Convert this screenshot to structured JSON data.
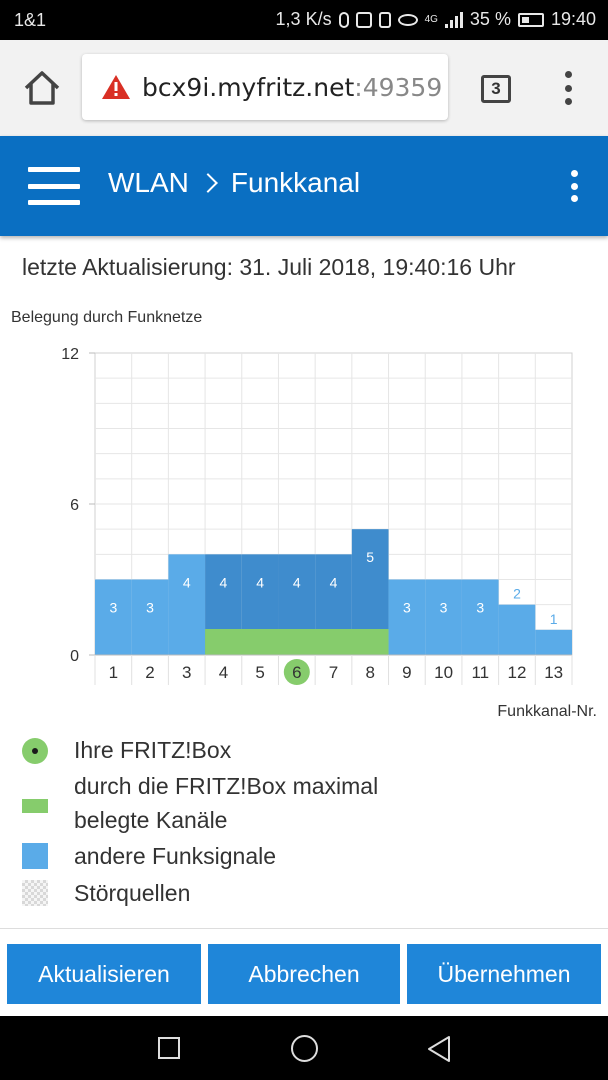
{
  "status_bar": {
    "carrier": "1&1",
    "speed": "1,3 K/s",
    "network": "4G",
    "battery": "35 %",
    "time": "19:40"
  },
  "browser": {
    "url_host": "bcx9i.myfritz.net",
    "url_port": ":49359",
    "tab_count": "3"
  },
  "header": {
    "section": "WLAN",
    "page": "Funkkanal"
  },
  "content": {
    "last_update": "letzte Aktualisierung: 31. Juli 2018, 19:40:16 Uhr"
  },
  "chart_data": {
    "type": "bar",
    "title": "Belegung durch Funknetze",
    "xlabel": "Funkkanal-Nr.",
    "ylabel": "",
    "ylim": [
      0,
      12
    ],
    "yticks": [
      0,
      6,
      12
    ],
    "categories": [
      "1",
      "2",
      "3",
      "4",
      "5",
      "6",
      "7",
      "8",
      "9",
      "10",
      "11",
      "12",
      "13"
    ],
    "values": [
      3,
      3,
      4,
      4,
      4,
      4,
      4,
      5,
      3,
      3,
      3,
      2,
      1
    ],
    "highlighted_channels": [
      "4",
      "5",
      "6",
      "7",
      "8"
    ],
    "own_channel": "6",
    "fritzbox_band": {
      "from": "4",
      "to": "8"
    },
    "colors": {
      "other_signals": "#5aabe8",
      "highlighted": "#3f8ccd",
      "fritzbox": "#86cc6c"
    }
  },
  "legend": [
    {
      "symbol": "dot",
      "label": "Ihre FRITZ!Box"
    },
    {
      "symbol": "bar",
      "label": "durch die FRITZ!Box maximal belegte Kanäle"
    },
    {
      "symbol": "blue",
      "label": "andere Funksignale"
    },
    {
      "symbol": "checker",
      "label": "Störquellen"
    }
  ],
  "buttons": {
    "refresh": "Aktualisieren",
    "cancel": "Abbrechen",
    "apply": "Übernehmen"
  },
  "icons": {
    "home": "home-icon",
    "warning": "warning-icon",
    "menu": "hamburger-icon",
    "more": "more-vert-icon"
  }
}
